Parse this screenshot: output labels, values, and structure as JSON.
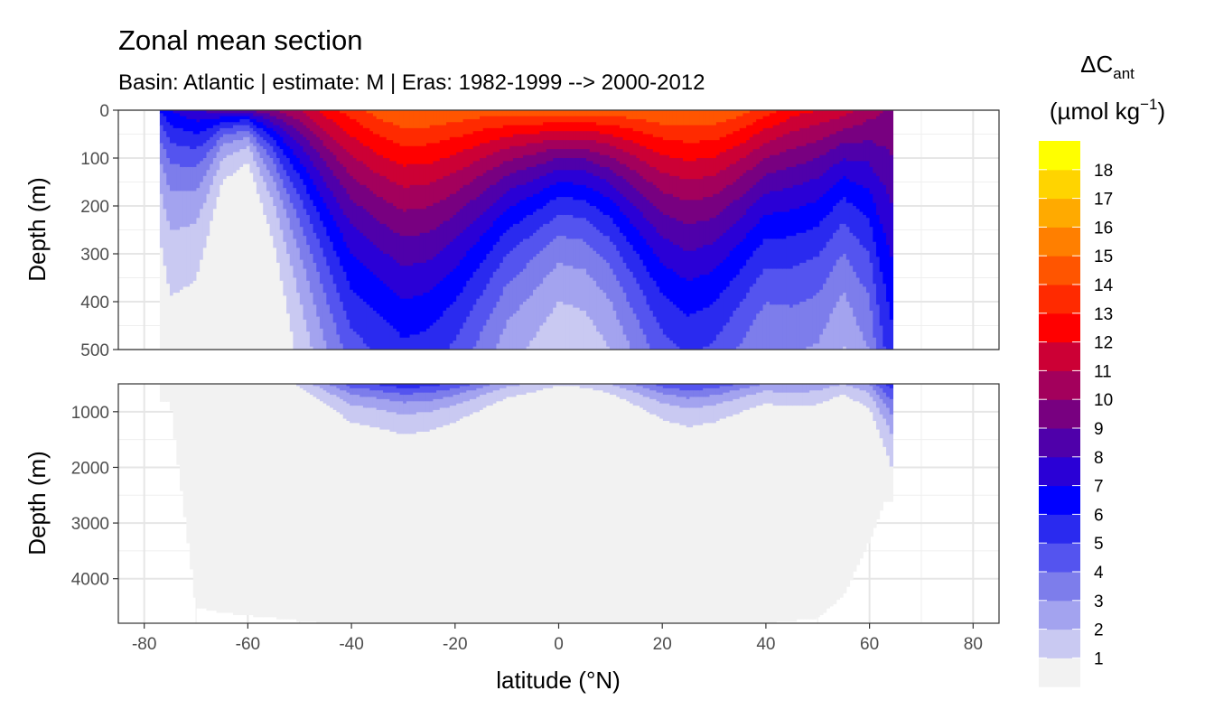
{
  "chart_data": {
    "type": "heatmap",
    "title": "Zonal mean section",
    "subtitle": "Basin: Atlantic | estimate: M  | Eras: 1982-1999 --> 2000-2012",
    "xlabel": "latitude (°N)",
    "ylabel": "Depth (m)",
    "xlim": [
      -85,
      85
    ],
    "x_ticks": [
      -80,
      -60,
      -40,
      -20,
      0,
      20,
      40,
      60,
      80
    ],
    "grid": true,
    "panels": [
      {
        "name": "upper",
        "ylim": [
          0,
          500
        ],
        "y_reversed": true,
        "y_ticks": [
          0,
          100,
          200,
          300,
          400,
          500
        ]
      },
      {
        "name": "lower",
        "ylim": [
          500,
          4800
        ],
        "y_reversed": true,
        "y_ticks": [
          1000,
          2000,
          3000,
          4000
        ]
      }
    ],
    "legend": {
      "title": "ΔC",
      "title_subscript": "ant",
      "units_prefix": "(µmol kg",
      "units_sup": "−1",
      "units_suffix": ")",
      "placement": "right",
      "breaks": [
        1,
        2,
        3,
        4,
        5,
        6,
        7,
        8,
        9,
        10,
        11,
        12,
        13,
        14,
        15,
        16,
        17,
        18
      ],
      "colors": [
        "#f2f2f2",
        "#c9c9f2",
        "#a3a3ef",
        "#7d7deb",
        "#5454ef",
        "#2a2aef",
        "#0000ff",
        "#2a00d6",
        "#4f00aa",
        "#780080",
        "#a3005c",
        "#cc0035",
        "#ff0000",
        "#ff2a00",
        "#ff5500",
        "#ff7f00",
        "#ffaa00",
        "#ffd400",
        "#ffff00"
      ]
    },
    "profiles": {
      "lat": [
        -77,
        -75,
        -70,
        -65,
        -60,
        -55,
        -50,
        -45,
        -40,
        -35,
        -30,
        -25,
        -20,
        -15,
        -10,
        -5,
        0,
        5,
        10,
        15,
        20,
        25,
        30,
        35,
        40,
        45,
        50,
        55,
        60,
        63,
        64.5
      ],
      "surface": [
        6,
        7,
        8,
        8.5,
        9,
        10,
        11,
        12.5,
        13.5,
        14.5,
        15,
        15,
        14.8,
        14.6,
        14.6,
        14.7,
        14.8,
        14.7,
        14.7,
        14.8,
        15,
        15,
        15,
        14.5,
        13.5,
        12.5,
        12,
        11.5,
        10.5,
        10,
        10
      ],
      "efold_depth_m": [
        150,
        200,
        170,
        70,
        50,
        120,
        230,
        340,
        460,
        480,
        520,
        500,
        440,
        360,
        280,
        240,
        200,
        210,
        250,
        330,
        420,
        470,
        440,
        380,
        330,
        360,
        350,
        280,
        400,
        720,
        900
      ],
      "bottom_depth_m": [
        800,
        800,
        4500,
        4600,
        4650,
        4700,
        4750,
        4800,
        4800,
        4800,
        4800,
        4800,
        4800,
        4800,
        4800,
        4800,
        4800,
        4800,
        4800,
        4800,
        4800,
        4800,
        4800,
        4800,
        4800,
        4750,
        4700,
        4300,
        3300,
        2600,
        2600
      ]
    }
  }
}
